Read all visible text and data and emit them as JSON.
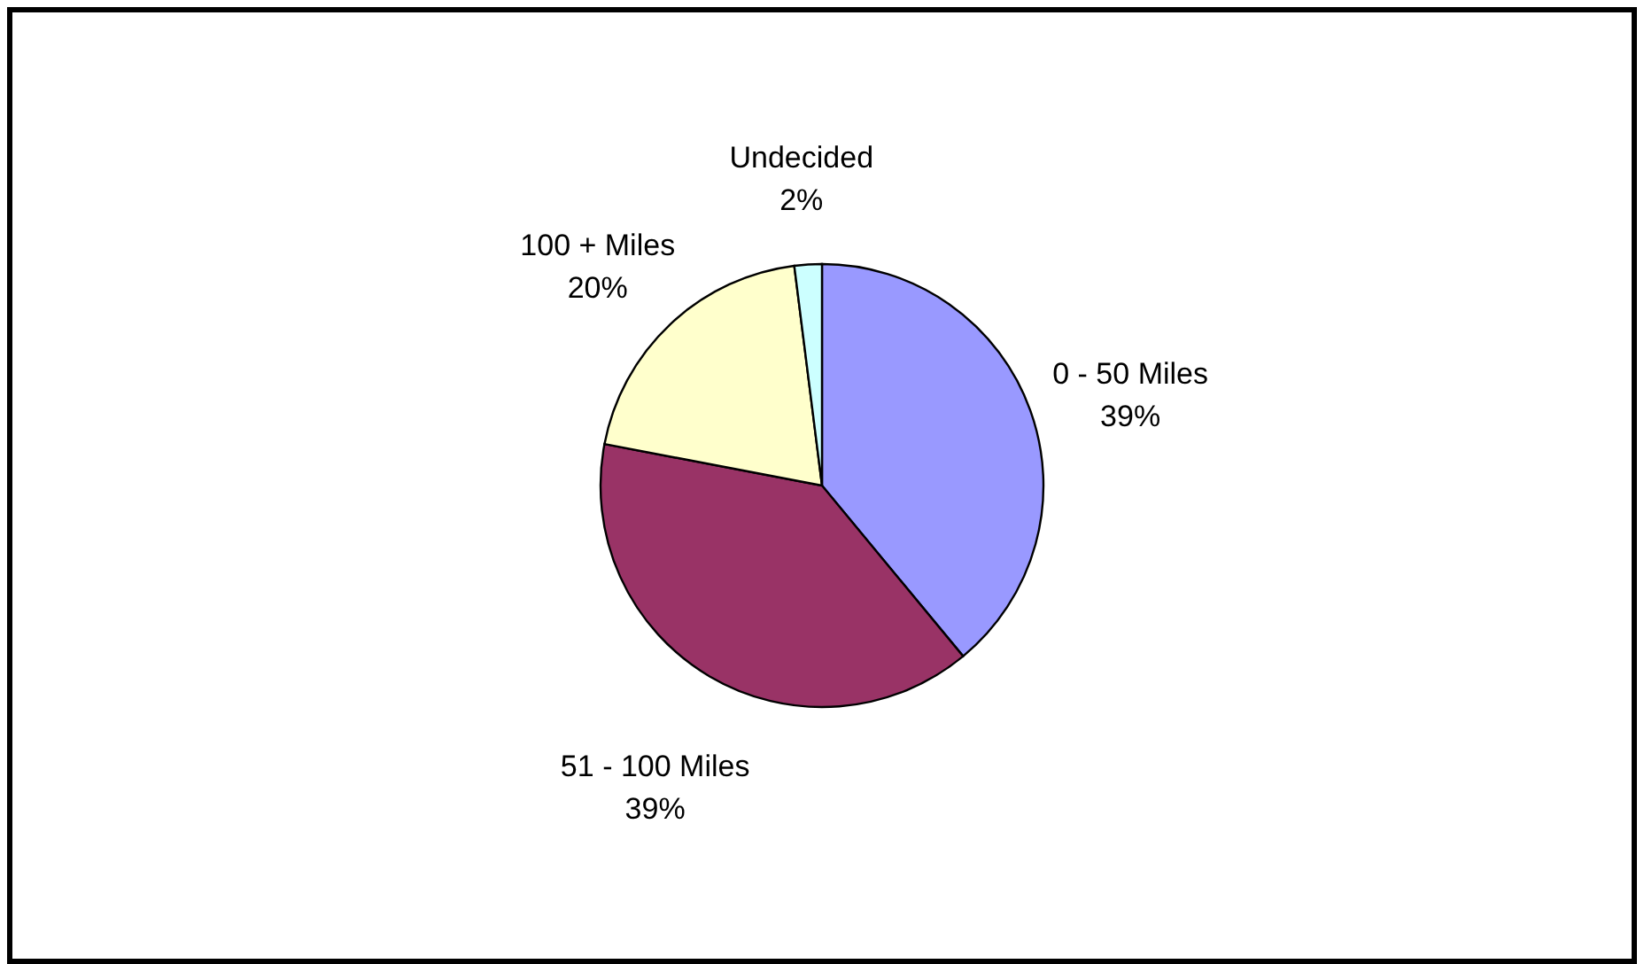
{
  "chart_data": {
    "type": "pie",
    "categories": [
      "0 - 50 Miles",
      "51 - 100 Miles",
      "100 + Miles",
      "Undecided"
    ],
    "values": [
      39,
      39,
      20,
      2
    ],
    "value_labels": [
      "39%",
      "39%",
      "20%",
      "2%"
    ],
    "colors": [
      "#9999ff",
      "#993366",
      "#ffffcc",
      "#ccffff"
    ],
    "legend": false
  }
}
